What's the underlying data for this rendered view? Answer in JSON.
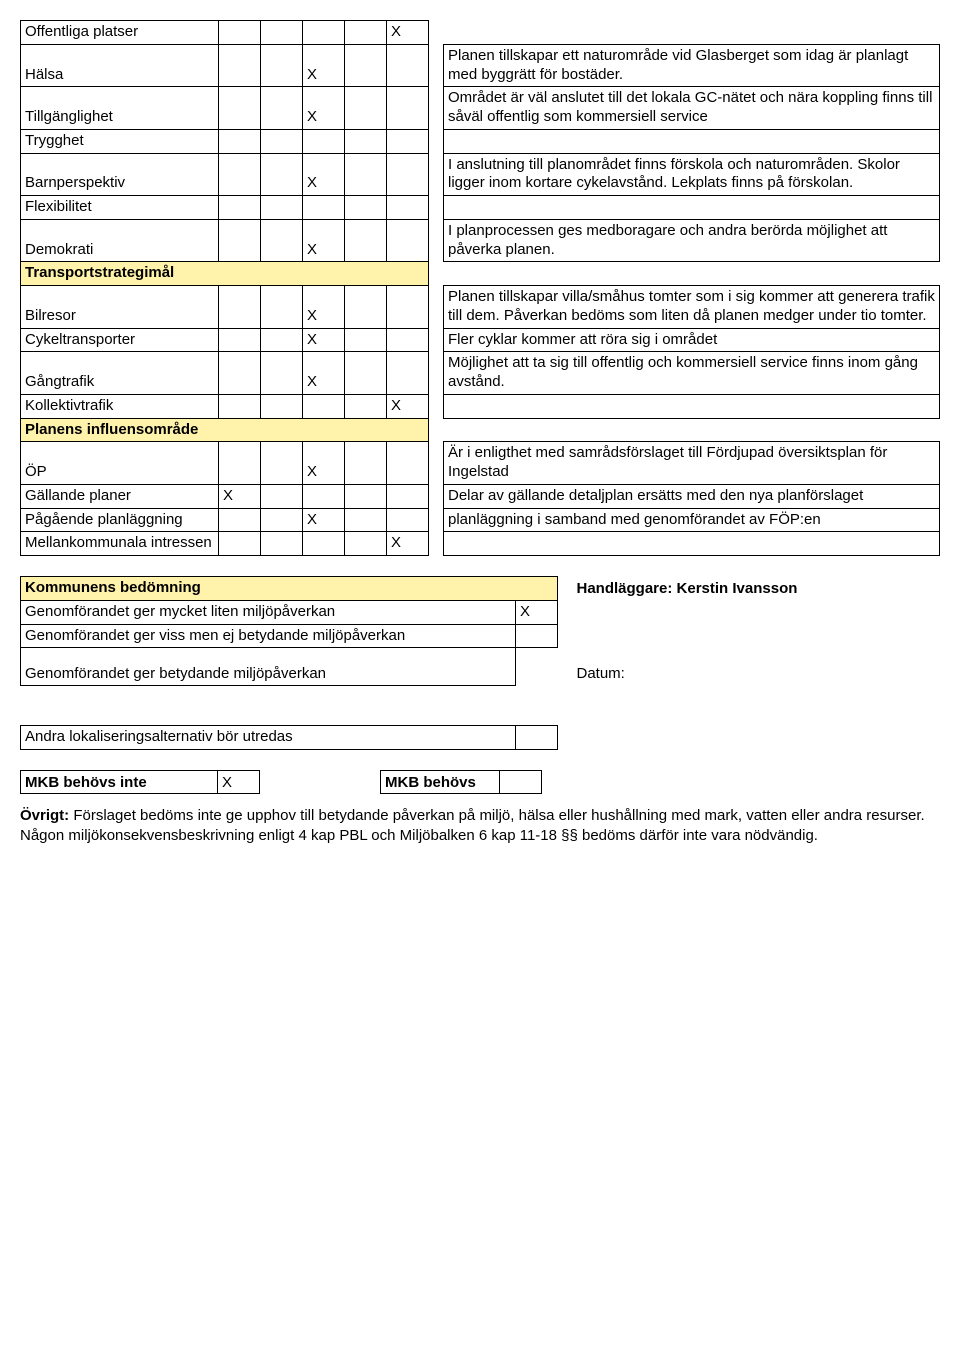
{
  "colors": {
    "highlight": "#fff2ab",
    "border": "#000000",
    "background": "#ffffff",
    "text": "#000000"
  },
  "mainTable": {
    "rows": [
      {
        "label": "Offentliga platser",
        "marks": [
          "",
          "",
          "",
          "",
          "X"
        ],
        "comment": "",
        "blankComment": true
      },
      {
        "label": "Hälsa",
        "marks": [
          "",
          "",
          "X",
          "",
          ""
        ],
        "comment": "Planen tillskapar ett naturområde vid Glasberget som idag är planlagt med byggrätt för bostäder."
      },
      {
        "label": "Tillgänglighet",
        "marks": [
          "",
          "",
          "X",
          "",
          ""
        ],
        "comment": "Området är väl anslutet till det lokala GC-nätet och nära koppling finns till såväl offentlig som kommersiell service"
      },
      {
        "label": "Trygghet",
        "marks": [
          "",
          "",
          "",
          "",
          ""
        ],
        "comment": ""
      },
      {
        "label": "Barnperspektiv",
        "marks": [
          "",
          "",
          "X",
          "",
          ""
        ],
        "comment": "I anslutning till planområdet finns förskola och naturområden. Skolor ligger inom kortare cykelavstånd. Lekplats finns på förskolan."
      },
      {
        "label": "Flexibilitet",
        "marks": [
          "",
          "",
          "",
          "",
          ""
        ],
        "comment": ""
      },
      {
        "label": "Demokrati",
        "marks": [
          "",
          "",
          "X",
          "",
          ""
        ],
        "comment": "I planprocessen ges medboragare och andra berörda möjlighet att påverka planen."
      },
      {
        "section": true,
        "label": "Transportstrategimål"
      },
      {
        "label": "Bilresor",
        "marks": [
          "",
          "",
          "X",
          "",
          ""
        ],
        "comment": "Planen tillskapar villa/småhus tomter som i sig kommer att generera trafik till dem. Påverkan bedöms som liten då planen medger under tio tomter."
      },
      {
        "label": "Cykeltransporter",
        "marks": [
          "",
          "",
          "X",
          "",
          ""
        ],
        "comment": "Fler cyklar kommer att röra sig i området"
      },
      {
        "label": "Gångtrafik",
        "marks": [
          "",
          "",
          "X",
          "",
          ""
        ],
        "comment": "Möjlighet att ta sig till offentlig och kommersiell service finns inom gång avstånd."
      },
      {
        "label": "Kollektivtrafik",
        "marks": [
          "",
          "",
          "",
          "",
          "X"
        ],
        "comment": ""
      },
      {
        "section": true,
        "label": "Planens influensområde"
      },
      {
        "label": "ÖP",
        "marks": [
          "",
          "",
          "X",
          "",
          ""
        ],
        "comment": "Är i enligthet med samrådsförslaget till Fördjupad översiktsplan för Ingelstad"
      },
      {
        "label": "Gällande planer",
        "marks": [
          "X",
          "",
          "",
          "",
          ""
        ],
        "comment": "Delar av gällande detaljplan ersätts med den nya planförslaget"
      },
      {
        "label": "Pågående planläggning",
        "marks": [
          "",
          "",
          "X",
          "",
          ""
        ],
        "comment": "planläggning i samband med genomförandet av FÖP:en"
      },
      {
        "label": "Mellankommunala intressen",
        "marks": [
          "",
          "",
          "",
          "",
          "X"
        ],
        "comment": ""
      }
    ]
  },
  "assessment": {
    "header": "Kommunens bedömning",
    "rows": [
      {
        "text": "Genomförandet ger mycket liten miljöpåverkan",
        "mark": "X"
      },
      {
        "text": "Genomförandet ger viss men ej betydande miljöpåverkan",
        "mark": ""
      },
      {
        "text": "Genomförandet ger betydande miljöpåverkan",
        "mark": ""
      }
    ],
    "handler_label": "Handläggare: Kerstin Ivansson",
    "date_label": "Datum:",
    "footer_row": "Andra lokaliseringsalternativ bör utredas"
  },
  "mkb": {
    "not_needed_label": "MKB behövs inte",
    "not_needed_mark": "X",
    "needed_label": "MKB behövs",
    "needed_mark": ""
  },
  "footer": {
    "lead": "Övrigt:",
    "text": " Förslaget bedöms inte ge upphov till betydande påverkan på miljö, hälsa eller hushållning med mark, vatten eller andra resurser. Någon miljökonsekvensbeskrivning enligt 4 kap PBL och Miljöbalken 6 kap 11-18 §§ bedöms därför inte vara nödvändig."
  }
}
